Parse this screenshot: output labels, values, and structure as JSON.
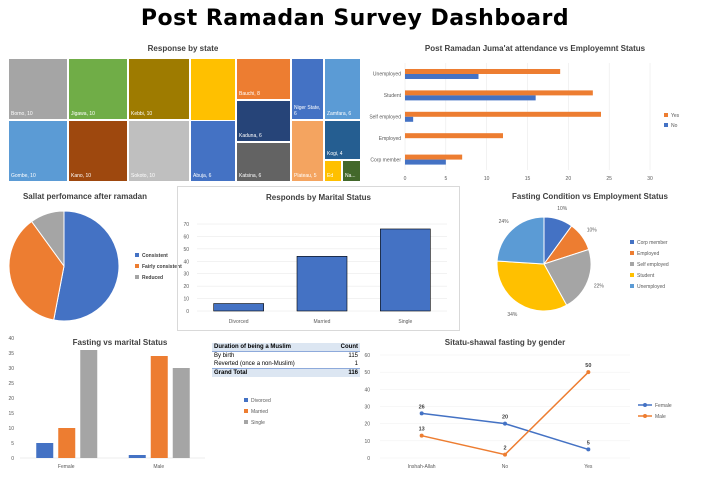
{
  "title": "Post Ramadan Survey Dashboard",
  "treemap": {
    "title": "Response by state",
    "tiles": [
      {
        "label": "Borno, 10",
        "value": 10,
        "color": "#a5a5a5"
      },
      {
        "label": "Jigawa, 10",
        "value": 10,
        "color": "#70ad47"
      },
      {
        "label": "Kebbi, 10",
        "value": 10,
        "color": "#9e7b00"
      },
      {
        "label": "Yobe, 9",
        "value": 9,
        "color": "#ffc000"
      },
      {
        "label": "Bauchi, 8",
        "value": 8,
        "color": "#ed7d31"
      },
      {
        "label": "Niger State, 6",
        "value": 6,
        "color": "#4472c4"
      },
      {
        "label": "Zamfara, 6",
        "value": 6,
        "color": "#5b9bd5"
      },
      {
        "label": "Gombe, 10",
        "value": 10,
        "color": "#5b9bd5"
      },
      {
        "label": "Kano, 10",
        "value": 10,
        "color": "#9e480e"
      },
      {
        "label": "Sokoto, 10",
        "value": 10,
        "color": "#bfbfbf"
      },
      {
        "label": "Abuja, 6",
        "value": 6,
        "color": "#4472c4"
      },
      {
        "label": "Kaduna, 6",
        "value": 6,
        "color": "#264478"
      },
      {
        "label": "Katsina, 6",
        "value": 6,
        "color": "#636363"
      },
      {
        "label": "Plateau, 5",
        "value": 5,
        "color": "#f4a460"
      },
      {
        "label": "Kogi, 4",
        "value": 4,
        "color": "#255e91"
      },
      {
        "label": "Ed",
        "value": 2,
        "color": "#ffc000"
      },
      {
        "label": "Na...",
        "value": 2,
        "color": "#43682b"
      }
    ]
  },
  "chart_data": [
    {
      "type": "bar",
      "orientation": "horizontal",
      "title": "Post Ramadan Juma'at attendance vs Employemnt Status",
      "categories": [
        "Unemployed",
        "Student",
        "Self employed",
        "Employed",
        "Corp member"
      ],
      "series": [
        {
          "name": "Yes",
          "color": "#ed7d31",
          "values": [
            19,
            23,
            24,
            12,
            7
          ]
        },
        {
          "name": "No",
          "color": "#4472c4",
          "values": [
            9,
            16,
            1,
            0,
            5
          ]
        }
      ],
      "xlim": [
        0,
        30
      ],
      "xticks": [
        0,
        5,
        10,
        15,
        20,
        25,
        30
      ],
      "legend": "right"
    },
    {
      "type": "pie",
      "title": "Sallat perfomance after ramadan",
      "labels": [
        "Consistent",
        "Fairly consistent",
        "Reduced"
      ],
      "values": [
        53,
        37,
        10
      ],
      "colors": [
        "#4472c4",
        "#ed7d31",
        "#a5a5a5"
      ],
      "legend": "right"
    },
    {
      "type": "bar",
      "title": "Responds by Marital Status",
      "categories": [
        "Divorced",
        "Married",
        "Single"
      ],
      "values": [
        6,
        44,
        66
      ],
      "ylim": [
        0,
        70
      ],
      "yticks": [
        0,
        10,
        20,
        30,
        40,
        50,
        60,
        70
      ],
      "color": "#4472c4"
    },
    {
      "type": "pie",
      "title": "Fasting Condition vs Employment Status",
      "labels": [
        "Corp member",
        "Employed",
        "Self employed",
        "Student",
        "Unemployed"
      ],
      "values": [
        10,
        10,
        22,
        34,
        24
      ],
      "percent_labels": [
        "10%",
        "10%",
        "22%",
        "34%",
        "24%"
      ],
      "colors": [
        "#4472c4",
        "#ed7d31",
        "#a5a5a5",
        "#ffc000",
        "#5b9bd5"
      ],
      "legend": "right"
    },
    {
      "type": "bar",
      "title": "Fasting vs marital Status",
      "categories": [
        "Female",
        "Male"
      ],
      "series": [
        {
          "name": "Divorced",
          "color": "#4472c4",
          "values": [
            5,
            1
          ]
        },
        {
          "name": "Married",
          "color": "#ed7d31",
          "values": [
            10,
            34
          ]
        },
        {
          "name": "Single",
          "color": "#a5a5a5",
          "values": [
            36,
            30
          ]
        }
      ],
      "ylim": [
        0,
        40
      ],
      "yticks": [
        0,
        5,
        10,
        15,
        20,
        25,
        30,
        35,
        40
      ],
      "legend": "right"
    },
    {
      "type": "table",
      "headers": [
        "Duration of being a Muslim",
        "Count"
      ],
      "rows": [
        [
          "By birth",
          "115"
        ],
        [
          "Reverted (once a non-Muslim)",
          "1"
        ]
      ],
      "total": [
        "Grand Total",
        "116"
      ]
    },
    {
      "type": "line",
      "title": "Sitatu-shawal fasting by gender",
      "categories": [
        "Inshah-Allah",
        "No",
        "Yes"
      ],
      "series": [
        {
          "name": "Female",
          "color": "#4472c4",
          "values": [
            26,
            20,
            5
          ]
        },
        {
          "name": "Male",
          "color": "#ed7d31",
          "values": [
            13,
            2,
            50
          ]
        }
      ],
      "ylim": [
        0,
        60
      ],
      "yticks": [
        0,
        10,
        20,
        30,
        40,
        50,
        60
      ],
      "data_labels": true,
      "legend": "right"
    }
  ]
}
